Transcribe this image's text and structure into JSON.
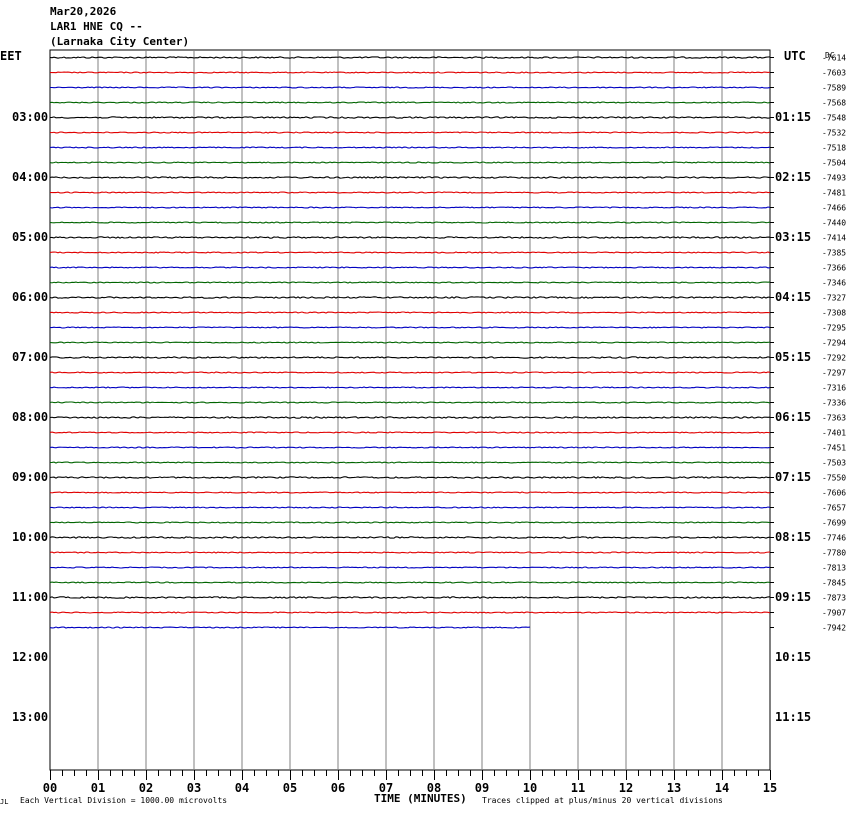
{
  "header": {
    "date": "Mar20,2026",
    "station": "LAR1 HNE CQ --",
    "location": "(Larnaka City Center)"
  },
  "left_tz": "EET",
  "right_tz": "UTC",
  "dc_label": "DC",
  "footer": {
    "left_mark": "JL",
    "vertical_division": "Each Vertical Division = 1000.00 microvolts",
    "x_title": "TIME (MINUTES)",
    "clip_note": "Traces clipped at plus/minus 20 vertical divisions"
  },
  "colors": {
    "black": "#000000",
    "red": "#e00000",
    "blue": "#0000c0",
    "green": "#006400",
    "grid": "#808080"
  },
  "chart_data": {
    "type": "line",
    "title": "LAR1 HNE CQ --",
    "xlabel": "TIME (MINUTES)",
    "xlim": [
      0,
      15
    ],
    "x_ticks": [
      "00",
      "01",
      "02",
      "03",
      "04",
      "05",
      "06",
      "07",
      "08",
      "09",
      "10",
      "11",
      "12",
      "13",
      "14",
      "15"
    ],
    "left_hour_labels": [
      "03:00",
      "04:00",
      "05:00",
      "06:00",
      "07:00",
      "08:00",
      "09:00",
      "10:00",
      "11:00",
      "12:00",
      "13:00"
    ],
    "right_hour_labels": [
      "01:15",
      "02:15",
      "03:15",
      "04:15",
      "05:15",
      "06:15",
      "07:15",
      "08:15",
      "09:15",
      "10:15",
      "11:15"
    ],
    "trace_colors": [
      "black",
      "red",
      "blue",
      "green"
    ],
    "trace_end_minutes": [
      15,
      15,
      15,
      15,
      15,
      15,
      15,
      15,
      15,
      15,
      15,
      15,
      15,
      15,
      15,
      15,
      15,
      15,
      15,
      15,
      15,
      15,
      15,
      15,
      15,
      15,
      15,
      15,
      15,
      15,
      15,
      15,
      15,
      15,
      15,
      15,
      15,
      15,
      10
    ],
    "dc_values": [
      "-7614",
      "-7603",
      "-7589",
      "-7568",
      "-7548",
      "-7532",
      "-7518",
      "-7504",
      "-7493",
      "-7481",
      "-7466",
      "-7440",
      "-7414",
      "-7385",
      "-7366",
      "-7346",
      "-7327",
      "-7308",
      "-7295",
      "-7294",
      "-7292",
      "-7297",
      "-7316",
      "-7336",
      "-7363",
      "-7401",
      "-7451",
      "-7503",
      "-7550",
      "-7606",
      "-7657",
      "-7699",
      "-7746",
      "-7780",
      "-7813",
      "-7845",
      "-7873",
      "-7907",
      "-7942"
    ]
  }
}
